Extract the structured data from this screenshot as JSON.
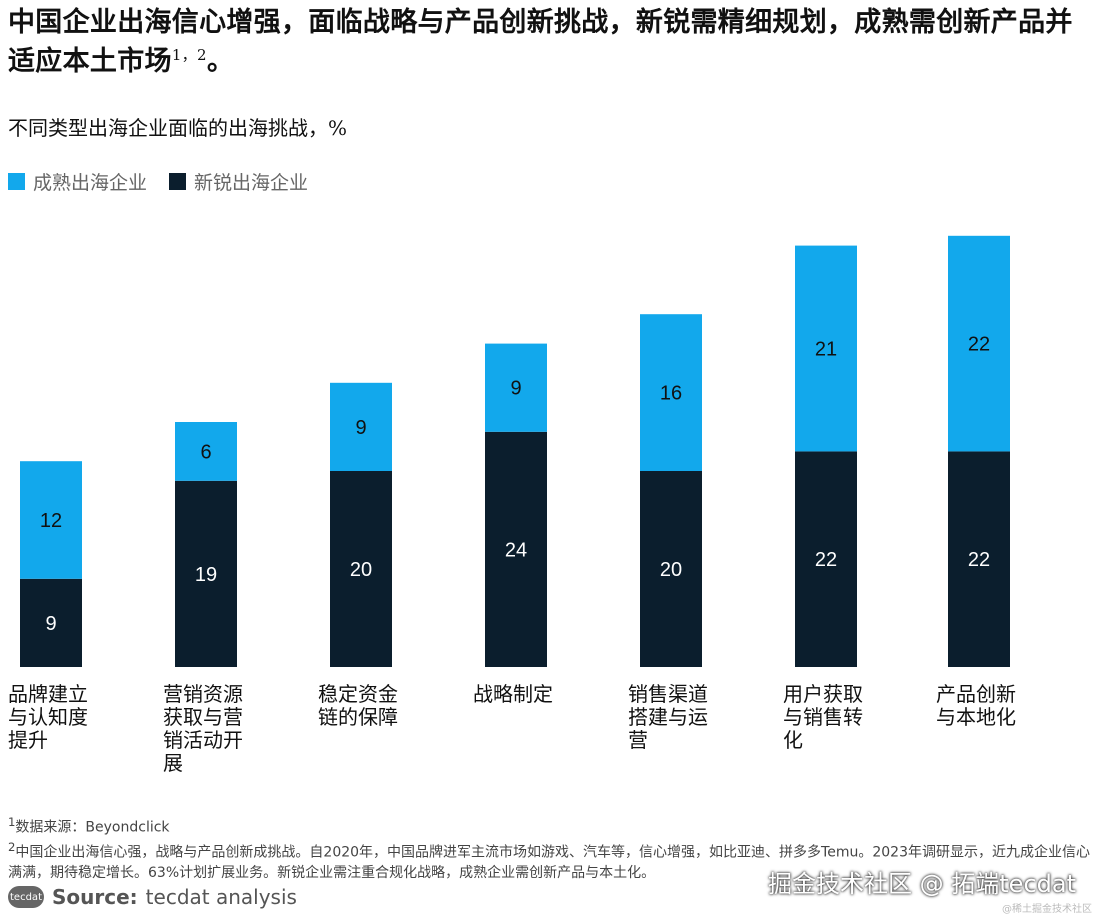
{
  "title": "中国企业出海信心增强，面临战略与产品创新挑战，新锐需精细规划，成熟需创新产品并适应本土市场",
  "title_sup": "1，2",
  "title_end": "。",
  "colors": {
    "mature": "#12a8ec",
    "emerging": "#0b1e2d"
  },
  "chart_data": {
    "type": "bar",
    "stacked": true,
    "title": "不同类型出海企业面临的出海挑战，%",
    "categories": [
      "品牌建立与认知度提升",
      "营销资源获取与营销活动开展",
      "稳定资金链的保障",
      "战略制定",
      "销售渠道搭建与运营",
      "用户获取与销售转化",
      "产品创新与本地化"
    ],
    "series": [
      {
        "name": "新锐出海企业",
        "values": [
          9,
          19,
          20,
          24,
          20,
          22,
          22
        ]
      },
      {
        "name": "成熟出海企业",
        "values": [
          12,
          6,
          9,
          9,
          16,
          21,
          22
        ]
      }
    ],
    "legend_order": [
      "成熟出海企业",
      "新锐出海企业"
    ],
    "legend_position": "top-left",
    "grid": false,
    "ylim": [
      0,
      45
    ]
  },
  "footnotes": [
    {
      "mark": "1",
      "text": "数据来源：Beyondclick"
    },
    {
      "mark": "2",
      "text": "中国企业出海信心强，战略与产品创新成挑战。自2020年，中国品牌进军主流市场如游戏、汽车等，信心增强，如比亚迪、拼多多Temu。2023年调研显示，近九成企业信心满满，期待稳定增长。63%计划扩展业务。新锐企业需注重合规化战略，成熟企业需创新产品与本土化。"
    }
  ],
  "source": {
    "logo": "tecdat",
    "label": "Source:",
    "text": "tecdat analysis"
  },
  "watermark": "掘金技术社区 @ 拓端tecdat",
  "watermark_small": "@稀土掘金技术社区"
}
